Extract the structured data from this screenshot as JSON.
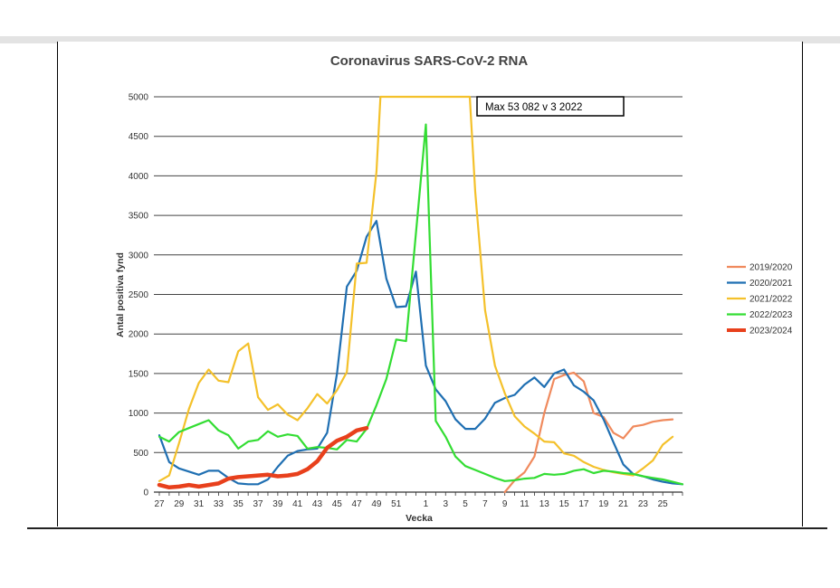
{
  "chart_data": {
    "type": "line",
    "title": "Coronavirus SARS-CoV-2 RNA",
    "xlabel": "Vecka",
    "ylabel": "Antal positiva fynd",
    "ylim": [
      0,
      5000
    ],
    "yticks": [
      0,
      500,
      1000,
      1500,
      2000,
      2500,
      3000,
      3500,
      4000,
      4500,
      5000
    ],
    "x_tick_labels": [
      "27",
      "29",
      "31",
      "33",
      "35",
      "37",
      "39",
      "41",
      "43",
      "45",
      "47",
      "49",
      "51",
      "1",
      "3",
      "5",
      "7",
      "9",
      "11",
      "13",
      "15",
      "17",
      "19",
      "21",
      "23",
      "25"
    ],
    "grid": true,
    "legend_position": "right",
    "annotation": "Max 53 082 v 3 2022",
    "series": [
      {
        "name": "2019/2020",
        "color": "#f08a5d",
        "points": [
          [
            9,
            0
          ],
          [
            10,
            150
          ],
          [
            11,
            250
          ],
          [
            12,
            450
          ],
          [
            13,
            1000
          ],
          [
            14,
            1430
          ],
          [
            15,
            1480
          ],
          [
            16,
            1510
          ],
          [
            17,
            1400
          ],
          [
            18,
            1000
          ],
          [
            19,
            950
          ],
          [
            20,
            750
          ],
          [
            21,
            680
          ],
          [
            22,
            830
          ],
          [
            23,
            850
          ],
          [
            24,
            890
          ],
          [
            25,
            910
          ],
          [
            26,
            920
          ]
        ]
      },
      {
        "name": "2020/2021",
        "color": "#1f6fb2",
        "points": [
          [
            27,
            720
          ],
          [
            28,
            380
          ],
          [
            29,
            300
          ],
          [
            30,
            260
          ],
          [
            31,
            220
          ],
          [
            32,
            270
          ],
          [
            33,
            270
          ],
          [
            34,
            180
          ],
          [
            35,
            110
          ],
          [
            36,
            100
          ],
          [
            37,
            100
          ],
          [
            38,
            160
          ],
          [
            39,
            320
          ],
          [
            40,
            460
          ],
          [
            41,
            520
          ],
          [
            42,
            540
          ],
          [
            43,
            550
          ],
          [
            44,
            750
          ],
          [
            45,
            1500
          ],
          [
            46,
            2600
          ],
          [
            47,
            2800
          ],
          [
            48,
            3230
          ],
          [
            49,
            3430
          ],
          [
            50,
            2700
          ],
          [
            51,
            2340
          ],
          [
            52,
            2350
          ],
          [
            53,
            2790
          ],
          [
            1,
            1600
          ],
          [
            2,
            1300
          ],
          [
            3,
            1150
          ],
          [
            4,
            920
          ],
          [
            5,
            800
          ],
          [
            6,
            800
          ],
          [
            7,
            930
          ],
          [
            8,
            1130
          ],
          [
            9,
            1190
          ],
          [
            10,
            1230
          ],
          [
            11,
            1360
          ],
          [
            12,
            1450
          ],
          [
            13,
            1330
          ],
          [
            14,
            1500
          ],
          [
            15,
            1550
          ],
          [
            16,
            1350
          ],
          [
            17,
            1270
          ],
          [
            18,
            1160
          ],
          [
            19,
            920
          ],
          [
            20,
            630
          ],
          [
            21,
            350
          ],
          [
            22,
            230
          ],
          [
            23,
            200
          ],
          [
            24,
            160
          ],
          [
            25,
            130
          ],
          [
            26,
            110
          ],
          [
            27,
            100
          ]
        ]
      },
      {
        "name": "2021/2022",
        "color": "#f4c12b",
        "points": [
          [
            27,
            140
          ],
          [
            28,
            210
          ],
          [
            29,
            620
          ],
          [
            30,
            1050
          ],
          [
            31,
            1380
          ],
          [
            32,
            1550
          ],
          [
            33,
            1410
          ],
          [
            34,
            1390
          ],
          [
            35,
            1780
          ],
          [
            36,
            1880
          ],
          [
            37,
            1200
          ],
          [
            38,
            1040
          ],
          [
            39,
            1110
          ],
          [
            40,
            980
          ],
          [
            41,
            910
          ],
          [
            42,
            1060
          ],
          [
            43,
            1240
          ],
          [
            44,
            1120
          ],
          [
            45,
            1290
          ],
          [
            46,
            1520
          ],
          [
            47,
            2890
          ],
          [
            48,
            2900
          ],
          [
            49,
            4050
          ],
          [
            49.4,
            5000
          ],
          [
            5.45,
            5000
          ],
          [
            6,
            3800
          ],
          [
            7,
            2300
          ],
          [
            8,
            1600
          ],
          [
            9,
            1250
          ],
          [
            10,
            960
          ],
          [
            11,
            830
          ],
          [
            12,
            740
          ],
          [
            13,
            640
          ],
          [
            14,
            630
          ],
          [
            15,
            490
          ],
          [
            16,
            460
          ],
          [
            17,
            380
          ],
          [
            18,
            320
          ],
          [
            19,
            280
          ],
          [
            20,
            250
          ],
          [
            21,
            230
          ],
          [
            22,
            210
          ],
          [
            23,
            300
          ],
          [
            24,
            400
          ],
          [
            25,
            600
          ],
          [
            26,
            700
          ]
        ]
      },
      {
        "name": "2022/2023",
        "color": "#33dd33",
        "points": [
          [
            27,
            700
          ],
          [
            28,
            640
          ],
          [
            29,
            760
          ],
          [
            30,
            810
          ],
          [
            31,
            860
          ],
          [
            32,
            910
          ],
          [
            33,
            780
          ],
          [
            34,
            720
          ],
          [
            35,
            550
          ],
          [
            36,
            640
          ],
          [
            37,
            660
          ],
          [
            38,
            770
          ],
          [
            39,
            700
          ],
          [
            40,
            730
          ],
          [
            41,
            710
          ],
          [
            42,
            550
          ],
          [
            43,
            570
          ],
          [
            44,
            560
          ],
          [
            45,
            540
          ],
          [
            46,
            660
          ],
          [
            47,
            640
          ],
          [
            48,
            800
          ],
          [
            49,
            1100
          ],
          [
            50,
            1430
          ],
          [
            51,
            1930
          ],
          [
            52,
            1910
          ],
          [
            1,
            4650
          ],
          [
            2,
            900
          ],
          [
            3,
            700
          ],
          [
            4,
            450
          ],
          [
            5,
            330
          ],
          [
            6,
            280
          ],
          [
            7,
            230
          ],
          [
            8,
            180
          ],
          [
            9,
            140
          ],
          [
            10,
            150
          ],
          [
            11,
            170
          ],
          [
            12,
            180
          ],
          [
            13,
            230
          ],
          [
            14,
            220
          ],
          [
            15,
            230
          ],
          [
            16,
            270
          ],
          [
            17,
            290
          ],
          [
            18,
            240
          ],
          [
            19,
            270
          ],
          [
            20,
            260
          ],
          [
            21,
            240
          ],
          [
            22,
            230
          ],
          [
            23,
            200
          ],
          [
            24,
            180
          ],
          [
            25,
            160
          ],
          [
            26,
            130
          ],
          [
            27,
            100
          ]
        ]
      },
      {
        "name": "2023/2024",
        "color": "#e8401c",
        "points": [
          [
            27,
            90
          ],
          [
            28,
            60
          ],
          [
            29,
            70
          ],
          [
            30,
            90
          ],
          [
            31,
            70
          ],
          [
            32,
            90
          ],
          [
            33,
            110
          ],
          [
            34,
            170
          ],
          [
            35,
            190
          ],
          [
            36,
            200
          ],
          [
            37,
            210
          ],
          [
            38,
            220
          ],
          [
            39,
            200
          ],
          [
            40,
            210
          ],
          [
            41,
            230
          ],
          [
            42,
            290
          ],
          [
            43,
            390
          ],
          [
            44,
            560
          ],
          [
            45,
            650
          ],
          [
            46,
            700
          ],
          [
            47,
            780
          ],
          [
            48,
            810
          ]
        ]
      }
    ]
  }
}
